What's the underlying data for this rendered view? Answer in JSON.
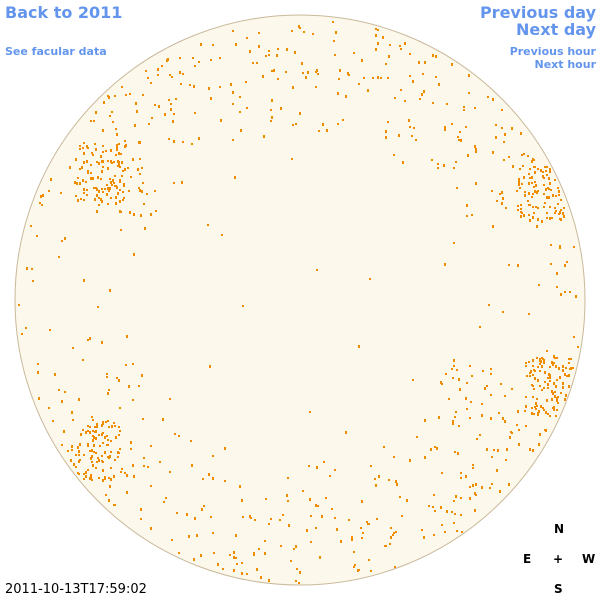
{
  "nav": {
    "back": "Back to 2011",
    "facular": "See facular data",
    "previous_day": "Previous day",
    "next_day": "Next day",
    "previous_hour": "Previous hour",
    "next_hour": "Next hour"
  },
  "compass": {
    "north": "N",
    "east": "E",
    "center": "+",
    "west": "W",
    "south": "S"
  },
  "timestamp": "2011-10-13T17:59:02"
}
